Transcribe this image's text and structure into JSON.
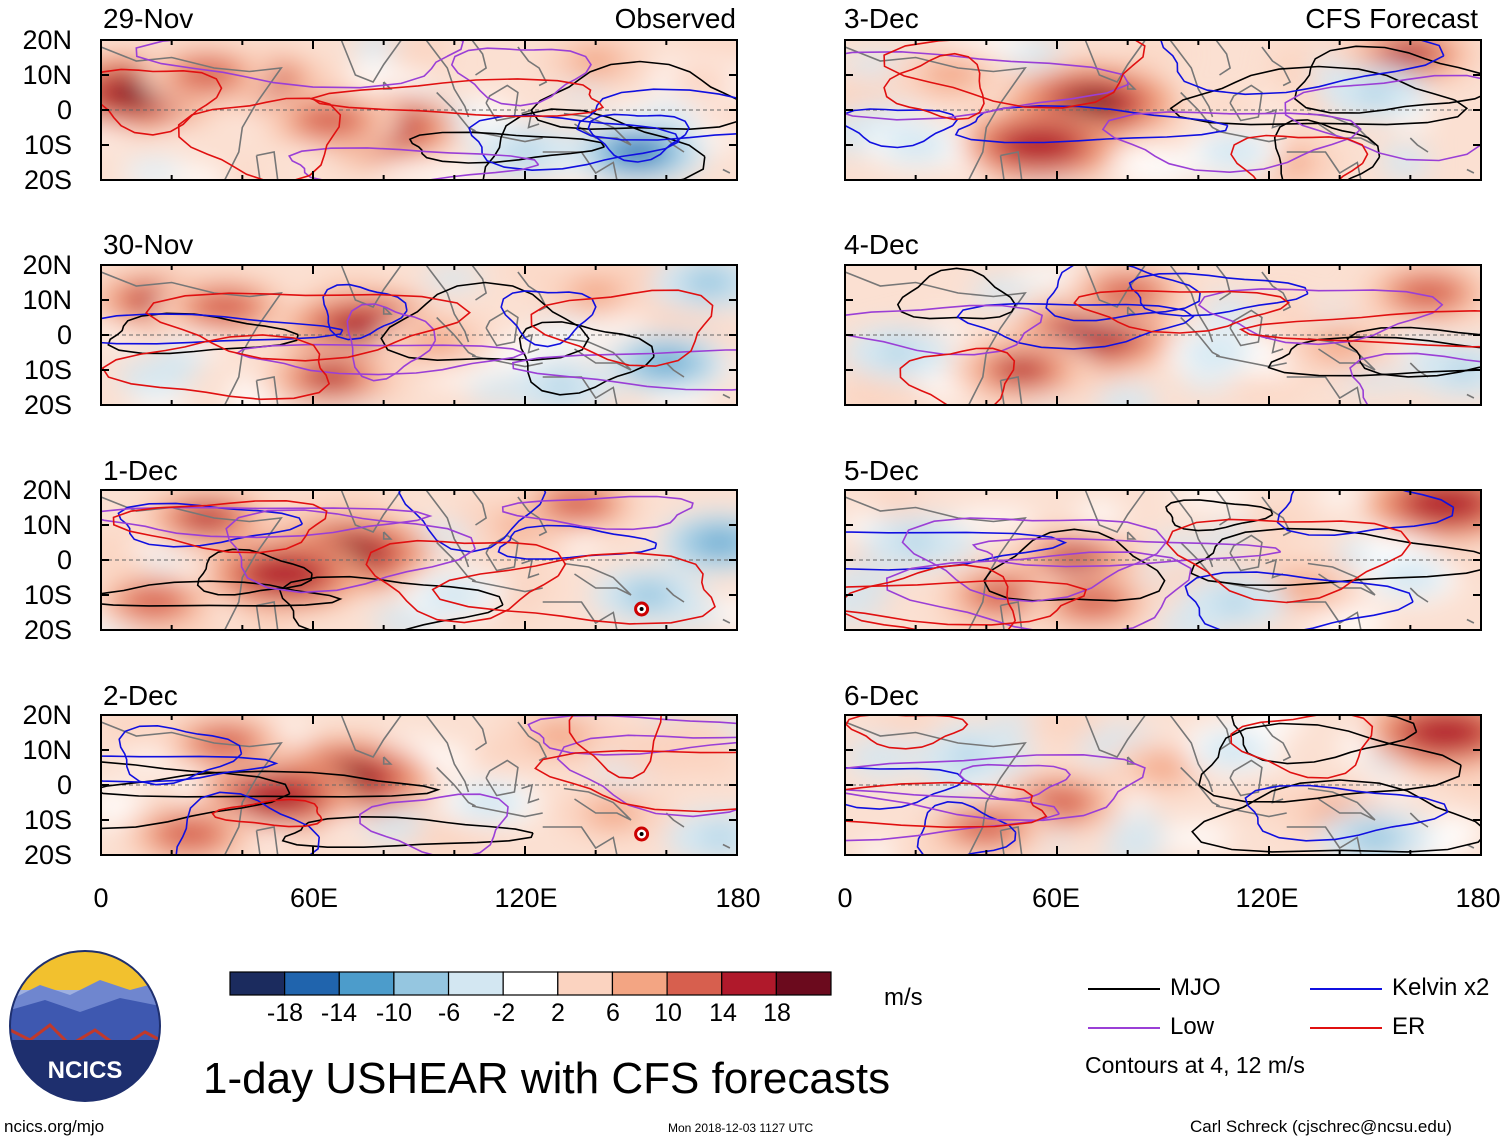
{
  "chart_data": [
    {
      "type": "heatmap",
      "panel": "observed",
      "date": "29-Nov",
      "label": "Observed",
      "row": 0,
      "col": 0,
      "blobs": [
        {
          "lon": 10,
          "lat": 5,
          "v": 20
        },
        {
          "lon": 45,
          "lat": 8,
          "v": 16
        },
        {
          "lon": 78,
          "lat": -5,
          "v": 18
        },
        {
          "lon": 65,
          "lat": -3,
          "v": 14
        },
        {
          "lon": 30,
          "lat": 10,
          "v": 12
        },
        {
          "lon": 140,
          "lat": 14,
          "v": 8
        },
        {
          "lon": 152,
          "lat": -12,
          "v": -14
        },
        {
          "lon": 120,
          "lat": -12,
          "v": -6
        },
        {
          "lon": 170,
          "lat": 8,
          "v": 4
        }
      ]
    },
    {
      "type": "heatmap",
      "panel": "observed",
      "date": "30-Nov",
      "label": "",
      "row": 1,
      "col": 0,
      "blobs": [
        {
          "lon": 15,
          "lat": 10,
          "v": 16
        },
        {
          "lon": 35,
          "lat": 8,
          "v": 14
        },
        {
          "lon": 75,
          "lat": 2,
          "v": 18
        },
        {
          "lon": 65,
          "lat": -12,
          "v": 16
        },
        {
          "lon": 95,
          "lat": -2,
          "v": 10
        },
        {
          "lon": 140,
          "lat": 12,
          "v": 8
        },
        {
          "lon": 160,
          "lat": -8,
          "v": -10
        },
        {
          "lon": 130,
          "lat": -15,
          "v": -6
        },
        {
          "lon": 172,
          "lat": 15,
          "v": -8
        }
      ]
    },
    {
      "type": "heatmap",
      "panel": "observed",
      "date": "1-Dec",
      "label": "",
      "row": 2,
      "col": 0,
      "blobs": [
        {
          "lon": 30,
          "lat": 12,
          "v": 16
        },
        {
          "lon": 70,
          "lat": 2,
          "v": 20
        },
        {
          "lon": 52,
          "lat": -4,
          "v": 18
        },
        {
          "lon": 15,
          "lat": -12,
          "v": 12
        },
        {
          "lon": 120,
          "lat": 10,
          "v": 8
        },
        {
          "lon": 135,
          "lat": 16,
          "v": 12
        },
        {
          "lon": 155,
          "lat": -10,
          "v": -8
        },
        {
          "lon": 175,
          "lat": 5,
          "v": -10
        },
        {
          "lon": 100,
          "lat": -10,
          "v": -4
        }
      ]
    },
    {
      "type": "heatmap",
      "panel": "observed",
      "date": "2-Dec",
      "label": "",
      "row": 3,
      "col": 0,
      "blobs": [
        {
          "lon": 70,
          "lat": 2,
          "v": 20
        },
        {
          "lon": 50,
          "lat": -3,
          "v": 18
        },
        {
          "lon": 35,
          "lat": 12,
          "v": 12
        },
        {
          "lon": 25,
          "lat": -14,
          "v": 14
        },
        {
          "lon": 130,
          "lat": 14,
          "v": 10
        },
        {
          "lon": 145,
          "lat": -8,
          "v": 8
        },
        {
          "lon": 160,
          "lat": 10,
          "v": 6
        },
        {
          "lon": 110,
          "lat": -5,
          "v": -4
        },
        {
          "lon": 175,
          "lat": -15,
          "v": -6
        }
      ]
    },
    {
      "type": "heatmap",
      "panel": "forecast",
      "date": "3-Dec",
      "label": "CFS Forecast",
      "row": 0,
      "col": 1,
      "blobs": [
        {
          "lon": 70,
          "lat": 2,
          "v": 20
        },
        {
          "lon": 55,
          "lat": -10,
          "v": 18
        },
        {
          "lon": 30,
          "lat": 10,
          "v": 10
        },
        {
          "lon": 160,
          "lat": 16,
          "v": 16
        },
        {
          "lon": 125,
          "lat": -15,
          "v": 8
        },
        {
          "lon": 150,
          "lat": 5,
          "v": -6
        },
        {
          "lon": 110,
          "lat": -12,
          "v": -4
        },
        {
          "lon": 20,
          "lat": -10,
          "v": -4
        }
      ]
    },
    {
      "type": "heatmap",
      "panel": "forecast",
      "date": "4-Dec",
      "label": "",
      "row": 1,
      "col": 1,
      "blobs": [
        {
          "lon": 70,
          "lat": 0,
          "v": 18
        },
        {
          "lon": 50,
          "lat": -10,
          "v": 16
        },
        {
          "lon": 80,
          "lat": 12,
          "v": 12
        },
        {
          "lon": 140,
          "lat": -3,
          "v": 10
        },
        {
          "lon": 165,
          "lat": 12,
          "v": 14
        },
        {
          "lon": 15,
          "lat": -5,
          "v": -6
        },
        {
          "lon": 105,
          "lat": -5,
          "v": -4
        },
        {
          "lon": 175,
          "lat": -10,
          "v": -6
        }
      ]
    },
    {
      "type": "heatmap",
      "panel": "forecast",
      "date": "5-Dec",
      "label": "",
      "row": 2,
      "col": 1,
      "blobs": [
        {
          "lon": 65,
          "lat": 0,
          "v": 16
        },
        {
          "lon": 45,
          "lat": -10,
          "v": 14
        },
        {
          "lon": 70,
          "lat": -12,
          "v": 12
        },
        {
          "lon": 170,
          "lat": 16,
          "v": 18
        },
        {
          "lon": 130,
          "lat": -8,
          "v": 10
        },
        {
          "lon": 110,
          "lat": -12,
          "v": -6
        },
        {
          "lon": 20,
          "lat": 5,
          "v": -6
        },
        {
          "lon": 160,
          "lat": -5,
          "v": -4
        }
      ]
    },
    {
      "type": "heatmap",
      "panel": "forecast",
      "date": "6-Dec",
      "label": "",
      "row": 3,
      "col": 1,
      "blobs": [
        {
          "lon": 60,
          "lat": -5,
          "v": 14
        },
        {
          "lon": 40,
          "lat": -12,
          "v": 12
        },
        {
          "lon": 90,
          "lat": 5,
          "v": 8
        },
        {
          "lon": 170,
          "lat": 15,
          "v": 18
        },
        {
          "lon": 140,
          "lat": -8,
          "v": 10
        },
        {
          "lon": 35,
          "lat": 8,
          "v": -6
        },
        {
          "lon": 150,
          "lat": -15,
          "v": -8
        },
        {
          "lon": 110,
          "lat": 10,
          "v": -4
        }
      ]
    }
  ],
  "axes": {
    "y_ticks": [
      "20N",
      "10N",
      "0",
      "10S",
      "20S"
    ],
    "y_values": [
      20,
      10,
      0,
      -10,
      -20
    ],
    "x_ticks": [
      "0",
      "60E",
      "120E",
      "180"
    ],
    "x_values": [
      0,
      60,
      120,
      180
    ],
    "xlim": [
      0,
      180
    ],
    "ylim": [
      -20,
      20
    ]
  },
  "colorbar": {
    "colors": [
      "#1b2b5e",
      "#2064ad",
      "#4c9ccb",
      "#95c6e0",
      "#d3e7f2",
      "#ffffff",
      "#fbd3c0",
      "#f3a583",
      "#d75f4e",
      "#b0192b",
      "#6b0a1d"
    ],
    "labels": [
      "-18",
      "-14",
      "-10",
      "-6",
      "-2",
      "2",
      "6",
      "10",
      "14",
      "18"
    ],
    "levels": [
      -18,
      -14,
      -10,
      -6,
      -2,
      2,
      6,
      10,
      14,
      18
    ],
    "unit": "m/s"
  },
  "legend": {
    "items": [
      {
        "label": "MJO",
        "color": "#000000"
      },
      {
        "label": "Kelvin x2",
        "color": "#1010e0"
      },
      {
        "label": "Low",
        "color": "#9a3fd6"
      },
      {
        "label": "ER",
        "color": "#e01010"
      }
    ],
    "note": "Contours at 4, 12 m/s"
  },
  "title": "1-day USHEAR with CFS forecasts",
  "logo_text": "NCICS",
  "footer": {
    "left": "ncics.org/mjo",
    "center": "Mon 2018-12-03 1127 UTC",
    "right": "Carl Schreck (cjschrec@ncsu.edu)"
  }
}
